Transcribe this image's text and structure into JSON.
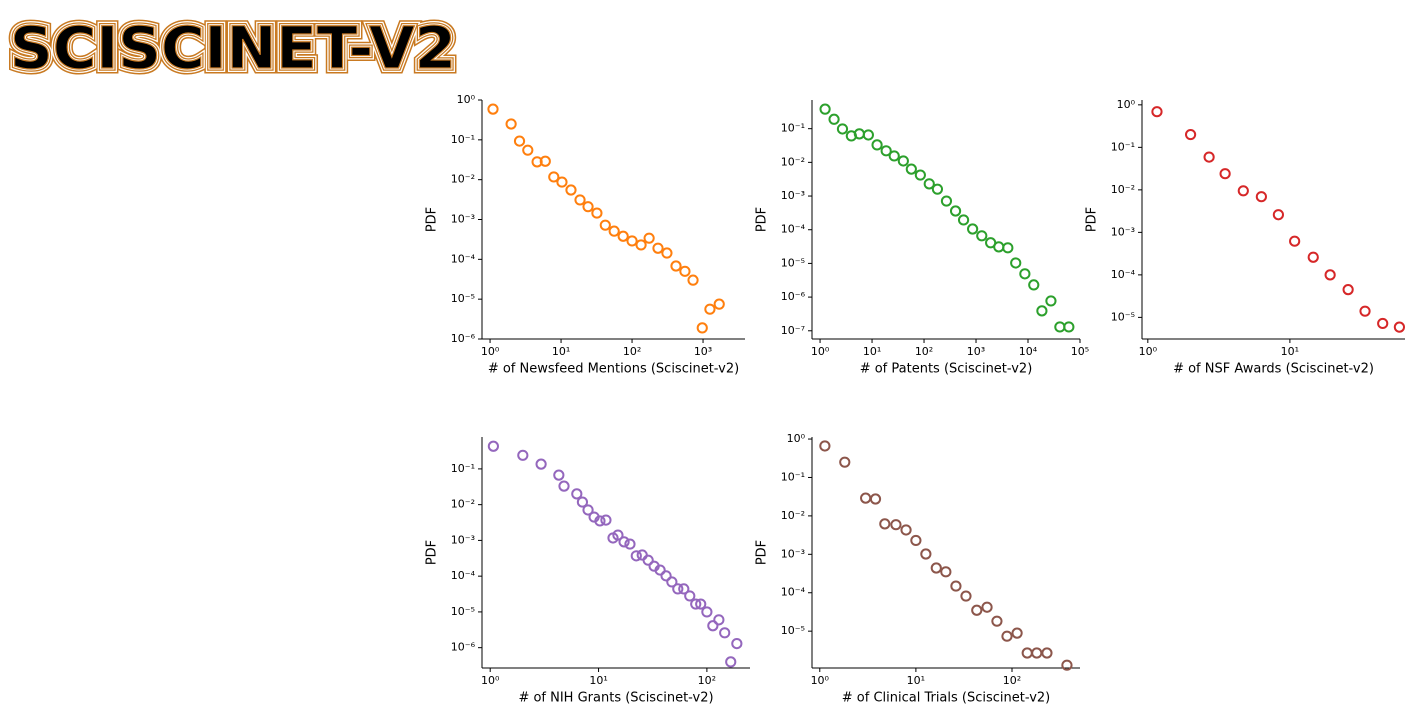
{
  "logo": "SCISCINET-V2",
  "chart_data": [
    {
      "type": "scatter",
      "color": "#ff7f0e",
      "xscale": "log",
      "yscale": "log",
      "xlabel": "# of Newsfeed Mentions (Sciscinet-v2)",
      "ylabel": "PDF",
      "xlim": [
        0.77,
        3900
      ],
      "ylim": [
        1e-06,
        1
      ],
      "xticks": [
        {
          "value": 1,
          "label": "10⁰"
        },
        {
          "value": 10,
          "label": "10¹"
        },
        {
          "value": 100,
          "label": "10²"
        },
        {
          "value": 1000,
          "label": "10³"
        }
      ],
      "yticks": [
        {
          "value": 1e-06,
          "label": "10⁻⁶"
        },
        {
          "value": 1e-05,
          "label": "10⁻⁵"
        },
        {
          "value": 0.0001,
          "label": "10⁻⁴"
        },
        {
          "value": 0.001,
          "label": "10⁻³"
        },
        {
          "value": 0.01,
          "label": "10⁻²"
        },
        {
          "value": 0.1,
          "label": "10⁻¹"
        },
        {
          "value": 1,
          "label": "10⁰"
        }
      ],
      "x": [
        1.1,
        1.98,
        2.6,
        3.4,
        4.6,
        6.0,
        7.9,
        10.3,
        13.8,
        18.5,
        24,
        32,
        42,
        56,
        75,
        100,
        134,
        174,
        232,
        310,
        416,
        556,
        723,
        975,
        1250,
        1690
      ],
      "values": [
        0.59,
        0.25,
        0.093,
        0.055,
        0.028,
        0.029,
        0.0117,
        0.0087,
        0.0055,
        0.0031,
        0.0021,
        0.00145,
        0.00072,
        0.00051,
        0.00038,
        0.00029,
        0.00023,
        0.00034,
        0.00019,
        0.000144,
        6.8e-05,
        5e-05,
        3e-05,
        1.9e-06,
        5.6e-06,
        7.5e-06
      ]
    },
    {
      "type": "scatter",
      "color": "#2ca02c",
      "xscale": "log",
      "yscale": "log",
      "xlabel": "# of Patents (Sciscinet-v2)",
      "ylabel": "PDF",
      "xlim": [
        0.7,
        100000
      ],
      "ylim": [
        5.7e-08,
        0.71
      ],
      "xticks": [
        {
          "value": 1,
          "label": "10⁰"
        },
        {
          "value": 10,
          "label": "10¹"
        },
        {
          "value": 100,
          "label": "10²"
        },
        {
          "value": 1000,
          "label": "10³"
        },
        {
          "value": 10000,
          "label": "10⁴"
        },
        {
          "value": 100000,
          "label": "10⁵"
        }
      ],
      "yticks": [
        {
          "value": 1e-07,
          "label": "10⁻⁷"
        },
        {
          "value": 1e-06,
          "label": "10⁻⁶"
        },
        {
          "value": 1e-05,
          "label": "10⁻⁵"
        },
        {
          "value": 0.0001,
          "label": "10⁻⁴"
        },
        {
          "value": 0.001,
          "label": "10⁻³"
        },
        {
          "value": 0.01,
          "label": "10⁻²"
        },
        {
          "value": 0.1,
          "label": "10⁻¹"
        }
      ],
      "x": [
        1.25,
        1.86,
        2.7,
        4.0,
        5.7,
        8.5,
        12.5,
        18.7,
        26.7,
        40,
        57,
        85,
        126,
        181,
        270,
        404,
        576,
        860,
        1290,
        1910,
        2740,
        4090,
        5800,
        8700,
        12900,
        18500,
        27600,
        41000,
        61000
      ],
      "values": [
        0.38,
        0.19,
        0.098,
        0.061,
        0.07,
        0.065,
        0.033,
        0.022,
        0.0155,
        0.011,
        0.0063,
        0.0042,
        0.0023,
        0.0016,
        0.00071,
        0.00036,
        0.000195,
        0.000105,
        6.6e-05,
        4.1e-05,
        3.1e-05,
        2.9e-05,
        1.03e-05,
        4.9e-06,
        2.3e-06,
        3.9e-07,
        7.7e-07,
        1.3e-07,
        1.3e-07
      ]
    },
    {
      "type": "scatter",
      "color": "#d62728",
      "xscale": "log",
      "yscale": "log",
      "xlabel": "# of NSF Awards (Sciscinet-v2)",
      "ylabel": "PDF",
      "xlim": [
        0.91,
        64.6
      ],
      "ylim": [
        3.1e-06,
        1.3
      ],
      "xticks": [
        {
          "value": 1,
          "label": "10⁰"
        },
        {
          "value": 10,
          "label": "10¹"
        }
      ],
      "yticks": [
        {
          "value": 1e-05,
          "label": "10⁻⁵"
        },
        {
          "value": 0.0001,
          "label": "10⁻⁴"
        },
        {
          "value": 0.001,
          "label": "10⁻³"
        },
        {
          "value": 0.01,
          "label": "10⁻²"
        },
        {
          "value": 0.1,
          "label": "10⁻¹"
        },
        {
          "value": 1,
          "label": "10⁰"
        }
      ],
      "x": [
        1.16,
        2.0,
        2.7,
        3.5,
        4.7,
        6.3,
        8.3,
        10.8,
        14.6,
        19.2,
        25.7,
        33.8,
        45,
        59
      ],
      "values": [
        0.69,
        0.2,
        0.059,
        0.024,
        0.0095,
        0.0069,
        0.0026,
        0.00062,
        0.00026,
        0.0001,
        4.5e-05,
        1.4e-05,
        7.2e-06,
        5.9e-06
      ]
    },
    {
      "type": "scatter",
      "color": "#9467bd",
      "xscale": "log",
      "yscale": "log",
      "xlabel": "# of NIH Grants (Sciscinet-v2)",
      "ylabel": "PDF",
      "xlim": [
        0.84,
        250
      ],
      "ylim": [
        2.7e-07,
        0.78
      ],
      "xticks": [
        {
          "value": 1,
          "label": "10⁰"
        },
        {
          "value": 10,
          "label": "10¹"
        },
        {
          "value": 100,
          "label": "10²"
        }
      ],
      "yticks": [
        {
          "value": 1e-06,
          "label": "10⁻⁶"
        },
        {
          "value": 1e-05,
          "label": "10⁻⁵"
        },
        {
          "value": 0.0001,
          "label": "10⁻⁴"
        },
        {
          "value": 0.001,
          "label": "10⁻³"
        },
        {
          "value": 0.01,
          "label": "10⁻²"
        },
        {
          "value": 0.1,
          "label": "10⁻¹"
        }
      ],
      "x": [
        1.07,
        2.0,
        2.95,
        4.3,
        4.8,
        6.3,
        7.1,
        8.0,
        9.1,
        10.3,
        11.7,
        13.6,
        15.1,
        17.2,
        19.5,
        22.3,
        25.3,
        28.7,
        32.6,
        37,
        42,
        47.5,
        53.9,
        61.2,
        69.5,
        78.9,
        87.7,
        100,
        113.5,
        129,
        146,
        166,
        189
      ],
      "values": [
        0.43,
        0.24,
        0.136,
        0.067,
        0.033,
        0.02,
        0.0118,
        0.0071,
        0.0045,
        0.0035,
        0.0037,
        0.00117,
        0.00141,
        0.00091,
        0.00079,
        0.00037,
        0.00039,
        0.00028,
        0.00019,
        0.000148,
        0.000102,
        6.9e-05,
        4.4e-05,
        4.4e-05,
        2.8e-05,
        1.66e-05,
        1.66e-05,
        1e-05,
        4.1e-06,
        6e-06,
        2.6e-06,
        4e-07,
        1.3e-06
      ]
    },
    {
      "type": "scatter",
      "color": "#8c564b",
      "xscale": "log",
      "yscale": "log",
      "xlabel": "# of Clinical Trials (Sciscinet-v2)",
      "ylabel": "PDF",
      "xlim": [
        0.83,
        510
      ],
      "ylim": [
        1.1e-06,
        1.13
      ],
      "xticks": [
        {
          "value": 1,
          "label": "10⁰"
        },
        {
          "value": 10,
          "label": "10¹"
        },
        {
          "value": 100,
          "label": "10²"
        }
      ],
      "yticks": [
        {
          "value": 1e-05,
          "label": "10⁻⁵"
        },
        {
          "value": 0.0001,
          "label": "10⁻⁴"
        },
        {
          "value": 0.001,
          "label": "10⁻³"
        },
        {
          "value": 0.01,
          "label": "10⁻²"
        },
        {
          "value": 0.1,
          "label": "10⁻¹"
        },
        {
          "value": 1,
          "label": "10⁰"
        }
      ],
      "x": [
        1.13,
        1.82,
        3.0,
        3.8,
        4.75,
        6.2,
        7.9,
        10,
        12.7,
        16.3,
        20.5,
        26.1,
        33.2,
        43,
        55,
        69.7,
        88.7,
        113,
        144,
        181,
        231,
        373
      ],
      "values": [
        0.66,
        0.25,
        0.029,
        0.0275,
        0.0062,
        0.0059,
        0.0043,
        0.0023,
        0.00102,
        0.00044,
        0.00035,
        0.000149,
        8.2e-05,
        3.5e-05,
        4.2e-05,
        1.82e-05,
        7.4e-06,
        8.9e-06,
        2.7e-06,
        2.7e-06,
        2.7e-06,
        1.3e-06
      ]
    }
  ]
}
